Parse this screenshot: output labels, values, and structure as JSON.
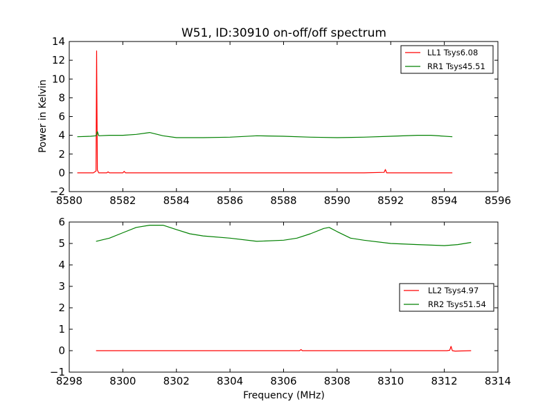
{
  "figure": {
    "title": "W51, ID:30910 on-off/off spectrum"
  },
  "chart_data": [
    {
      "type": "line",
      "title": "W51, ID:30910 on-off/off spectrum",
      "xlabel": "",
      "ylabel": "Power in Kelvin",
      "xlim": [
        8580,
        8596
      ],
      "ylim": [
        -2,
        14
      ],
      "xticks": [
        8580,
        8582,
        8584,
        8586,
        8588,
        8590,
        8592,
        8594,
        8596
      ],
      "yticks": [
        -2,
        0,
        2,
        4,
        6,
        8,
        10,
        12,
        14
      ],
      "grid": false,
      "legend_position": "top-right",
      "series": [
        {
          "name": "LL1 Tsys6.08",
          "color": "#ff0000",
          "x": [
            8580.3,
            8580.9,
            8581.0,
            8581.02,
            8581.05,
            8581.1,
            8581.4,
            8581.45,
            8581.5,
            8582.0,
            8582.05,
            8582.1,
            8583.0,
            8584.0,
            8585.0,
            8586.0,
            8587.0,
            8588.0,
            8589.0,
            8590.0,
            8591.0,
            8591.75,
            8591.8,
            8591.85,
            8592.5,
            8593.0,
            8593.5,
            8594.3
          ],
          "y": [
            0.0,
            0.0,
            0.2,
            13.0,
            0.3,
            0.0,
            0.0,
            0.1,
            0.0,
            0.0,
            0.15,
            0.0,
            0.0,
            0.0,
            0.0,
            0.0,
            0.0,
            0.0,
            0.0,
            0.0,
            0.0,
            0.05,
            0.35,
            0.0,
            0.0,
            0.0,
            0.0,
            0.0
          ]
        },
        {
          "name": "RR1 Tsys45.51",
          "color": "#008000",
          "x": [
            8580.3,
            8580.8,
            8581.0,
            8581.05,
            8581.1,
            8581.5,
            8582.0,
            8582.5,
            8583.0,
            8583.5,
            8584.0,
            8585.0,
            8586.0,
            8587.0,
            8588.0,
            8589.0,
            8590.0,
            8591.0,
            8592.0,
            8593.0,
            8593.5,
            8594.3
          ],
          "y": [
            3.85,
            3.9,
            3.95,
            4.4,
            3.95,
            4.0,
            4.0,
            4.1,
            4.3,
            3.95,
            3.75,
            3.75,
            3.8,
            3.95,
            3.9,
            3.8,
            3.75,
            3.8,
            3.9,
            4.0,
            4.0,
            3.85
          ]
        }
      ]
    },
    {
      "type": "line",
      "title": "",
      "xlabel": "Frequency (MHz)",
      "ylabel": "",
      "xlim": [
        8298,
        8314
      ],
      "ylim": [
        -1,
        6
      ],
      "xticks": [
        8298,
        8300,
        8302,
        8304,
        8306,
        8308,
        8310,
        8312,
        8314
      ],
      "yticks": [
        -1,
        0,
        1,
        2,
        3,
        4,
        5,
        6
      ],
      "grid": false,
      "legend_position": "center-right",
      "series": [
        {
          "name": "LL2 Tsys4.97",
          "color": "#ff0000",
          "x": [
            8299.0,
            8302.0,
            8304.0,
            8306.0,
            8306.6,
            8306.65,
            8306.7,
            8308.0,
            8310.0,
            8311.5,
            8312.1,
            8312.2,
            8312.25,
            8312.3,
            8312.4,
            8313.0
          ],
          "y": [
            0.0,
            0.0,
            0.0,
            0.0,
            0.0,
            0.05,
            0.0,
            0.0,
            0.0,
            0.0,
            0.0,
            0.02,
            0.2,
            0.0,
            -0.02,
            0.0
          ]
        },
        {
          "name": "RR2 Tsys51.54",
          "color": "#008000",
          "x": [
            8299.0,
            8299.5,
            8300.0,
            8300.5,
            8301.0,
            8301.5,
            8302.0,
            8302.5,
            8303.0,
            8304.0,
            8305.0,
            8306.0,
            8306.5,
            8307.0,
            8307.5,
            8307.7,
            8308.0,
            8308.5,
            8309.0,
            8310.0,
            8311.0,
            8312.0,
            8312.5,
            8313.0
          ],
          "y": [
            5.1,
            5.25,
            5.5,
            5.75,
            5.85,
            5.85,
            5.65,
            5.45,
            5.35,
            5.25,
            5.1,
            5.15,
            5.25,
            5.45,
            5.7,
            5.75,
            5.55,
            5.25,
            5.15,
            5.0,
            4.95,
            4.9,
            4.95,
            5.05
          ]
        }
      ]
    }
  ]
}
